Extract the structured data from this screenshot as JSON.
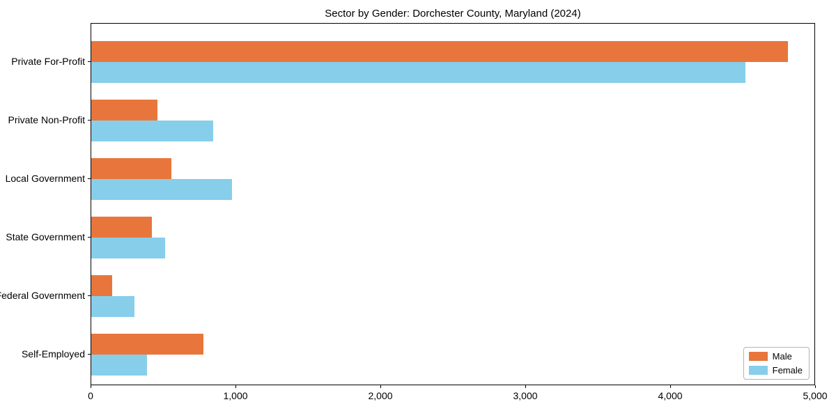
{
  "chart_data": {
    "type": "bar",
    "orientation": "horizontal",
    "title": "Sector by Gender: Dorchester County, Maryland (2024)",
    "categories": [
      "Private For-Profit",
      "Private Non-Profit",
      "Local Government",
      "State Government",
      "Federal Government",
      "Self-Employed"
    ],
    "series": [
      {
        "name": "Male",
        "color": "#e8763c",
        "values": [
          4810,
          455,
          555,
          420,
          145,
          775
        ]
      },
      {
        "name": "Female",
        "color": "#87ceeb",
        "values": [
          4515,
          840,
          970,
          510,
          300,
          385
        ]
      }
    ],
    "xlabel": "",
    "ylabel": "",
    "xlim": [
      0,
      5000
    ],
    "xticks": [
      0,
      1000,
      2000,
      3000,
      4000,
      5000
    ],
    "xtick_labels": [
      "0",
      "1,000",
      "2,000",
      "3,000",
      "4,000",
      "5,000"
    ],
    "legend_position": "lower right",
    "grid": false,
    "colors": {
      "axis": "#000000",
      "text": "#000000",
      "background": "#ffffff"
    }
  }
}
